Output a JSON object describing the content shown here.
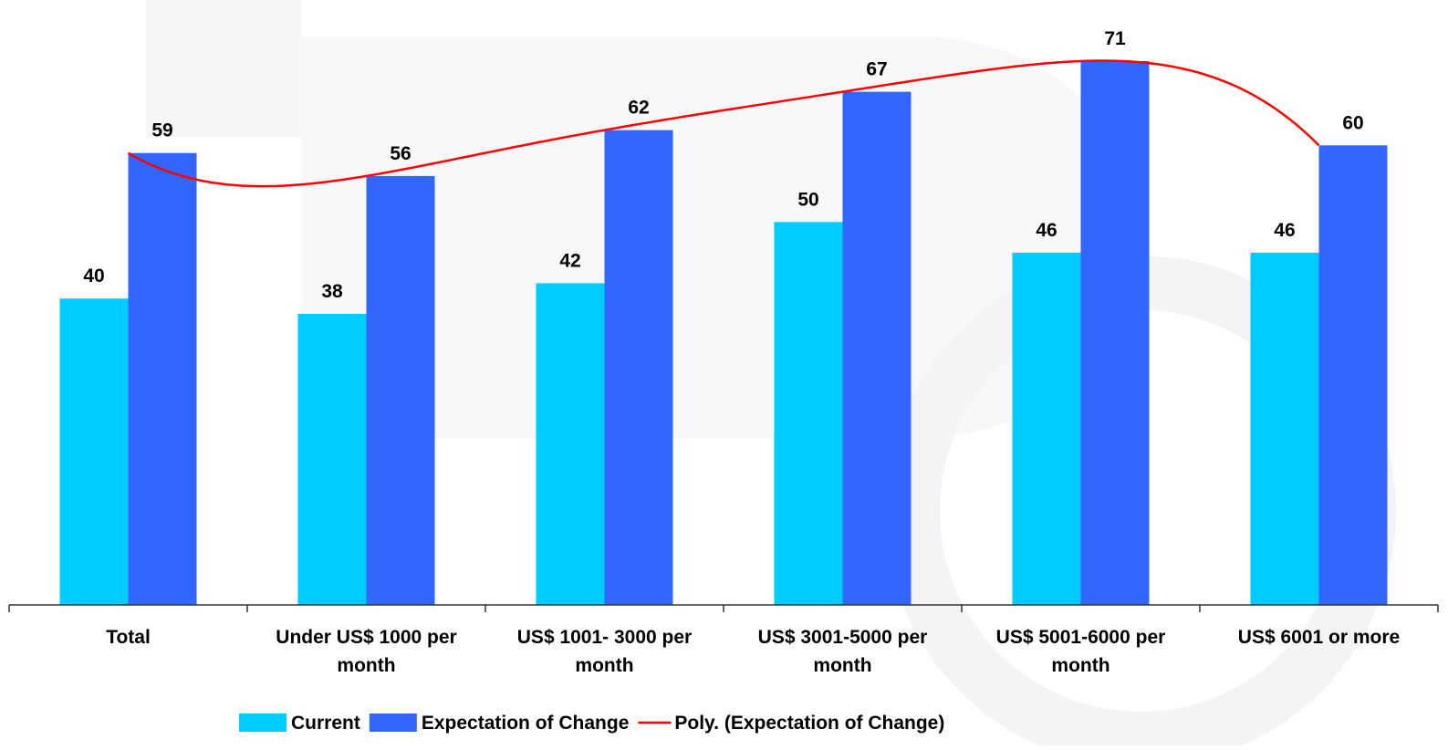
{
  "chart_data": {
    "type": "bar",
    "categories": [
      [
        "Total"
      ],
      [
        "Under US$ 1000 per",
        "month"
      ],
      [
        "US$ 1001- 3000 per",
        "month"
      ],
      [
        "US$ 3001-5000 per",
        "month"
      ],
      [
        "US$ 5001-6000 per",
        "month"
      ],
      [
        "US$ 6001 or more"
      ]
    ],
    "series": [
      {
        "name": "Current",
        "values": [
          40,
          38,
          42,
          50,
          46,
          46
        ],
        "color": "#00CCFF"
      },
      {
        "name": "Expectation of Change",
        "values": [
          59,
          56,
          62,
          67,
          71,
          60
        ],
        "color": "#3366FF"
      }
    ],
    "trendline": {
      "name": "Poly. (Expectation of Change)",
      "type": "polynomial",
      "of_series": "Expectation of Change",
      "color": "#FF0000"
    },
    "ylim": [
      0,
      76.6
    ],
    "grid": false,
    "data_labels": true,
    "legend_position": "bottom"
  }
}
